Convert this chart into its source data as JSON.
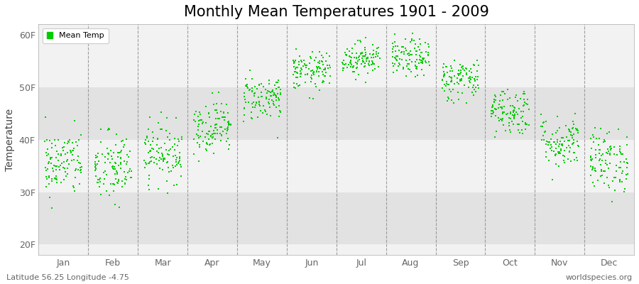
{
  "title": "Monthly Mean Temperatures 1901 - 2009",
  "ylabel": "Temperature",
  "xlabel_months": [
    "Jan",
    "Feb",
    "Mar",
    "Apr",
    "May",
    "Jun",
    "Jul",
    "Aug",
    "Sep",
    "Oct",
    "Nov",
    "Dec"
  ],
  "ytick_labels": [
    "20F",
    "30F",
    "40F",
    "50F",
    "60F"
  ],
  "ytick_values": [
    20,
    30,
    40,
    50,
    60
  ],
  "ylim": [
    18,
    62
  ],
  "legend_label": "Mean Temp",
  "dot_color": "#00CC00",
  "bg_light": "#F2F2F2",
  "bg_dark": "#E2E2E2",
  "footer_left": "Latitude 56.25 Longitude -4.75",
  "footer_right": "worldspecies.org",
  "num_years": 109,
  "monthly_means_f": [
    35.5,
    34.5,
    37.5,
    42.5,
    48.0,
    53.0,
    55.5,
    55.5,
    51.5,
    45.5,
    39.5,
    36.0
  ],
  "monthly_stds_f": [
    3.2,
    3.5,
    2.8,
    2.5,
    2.2,
    1.8,
    1.6,
    1.8,
    2.0,
    2.3,
    2.5,
    3.0
  ],
  "title_fontsize": 15,
  "axis_fontsize": 10,
  "tick_fontsize": 9,
  "footer_fontsize": 8
}
